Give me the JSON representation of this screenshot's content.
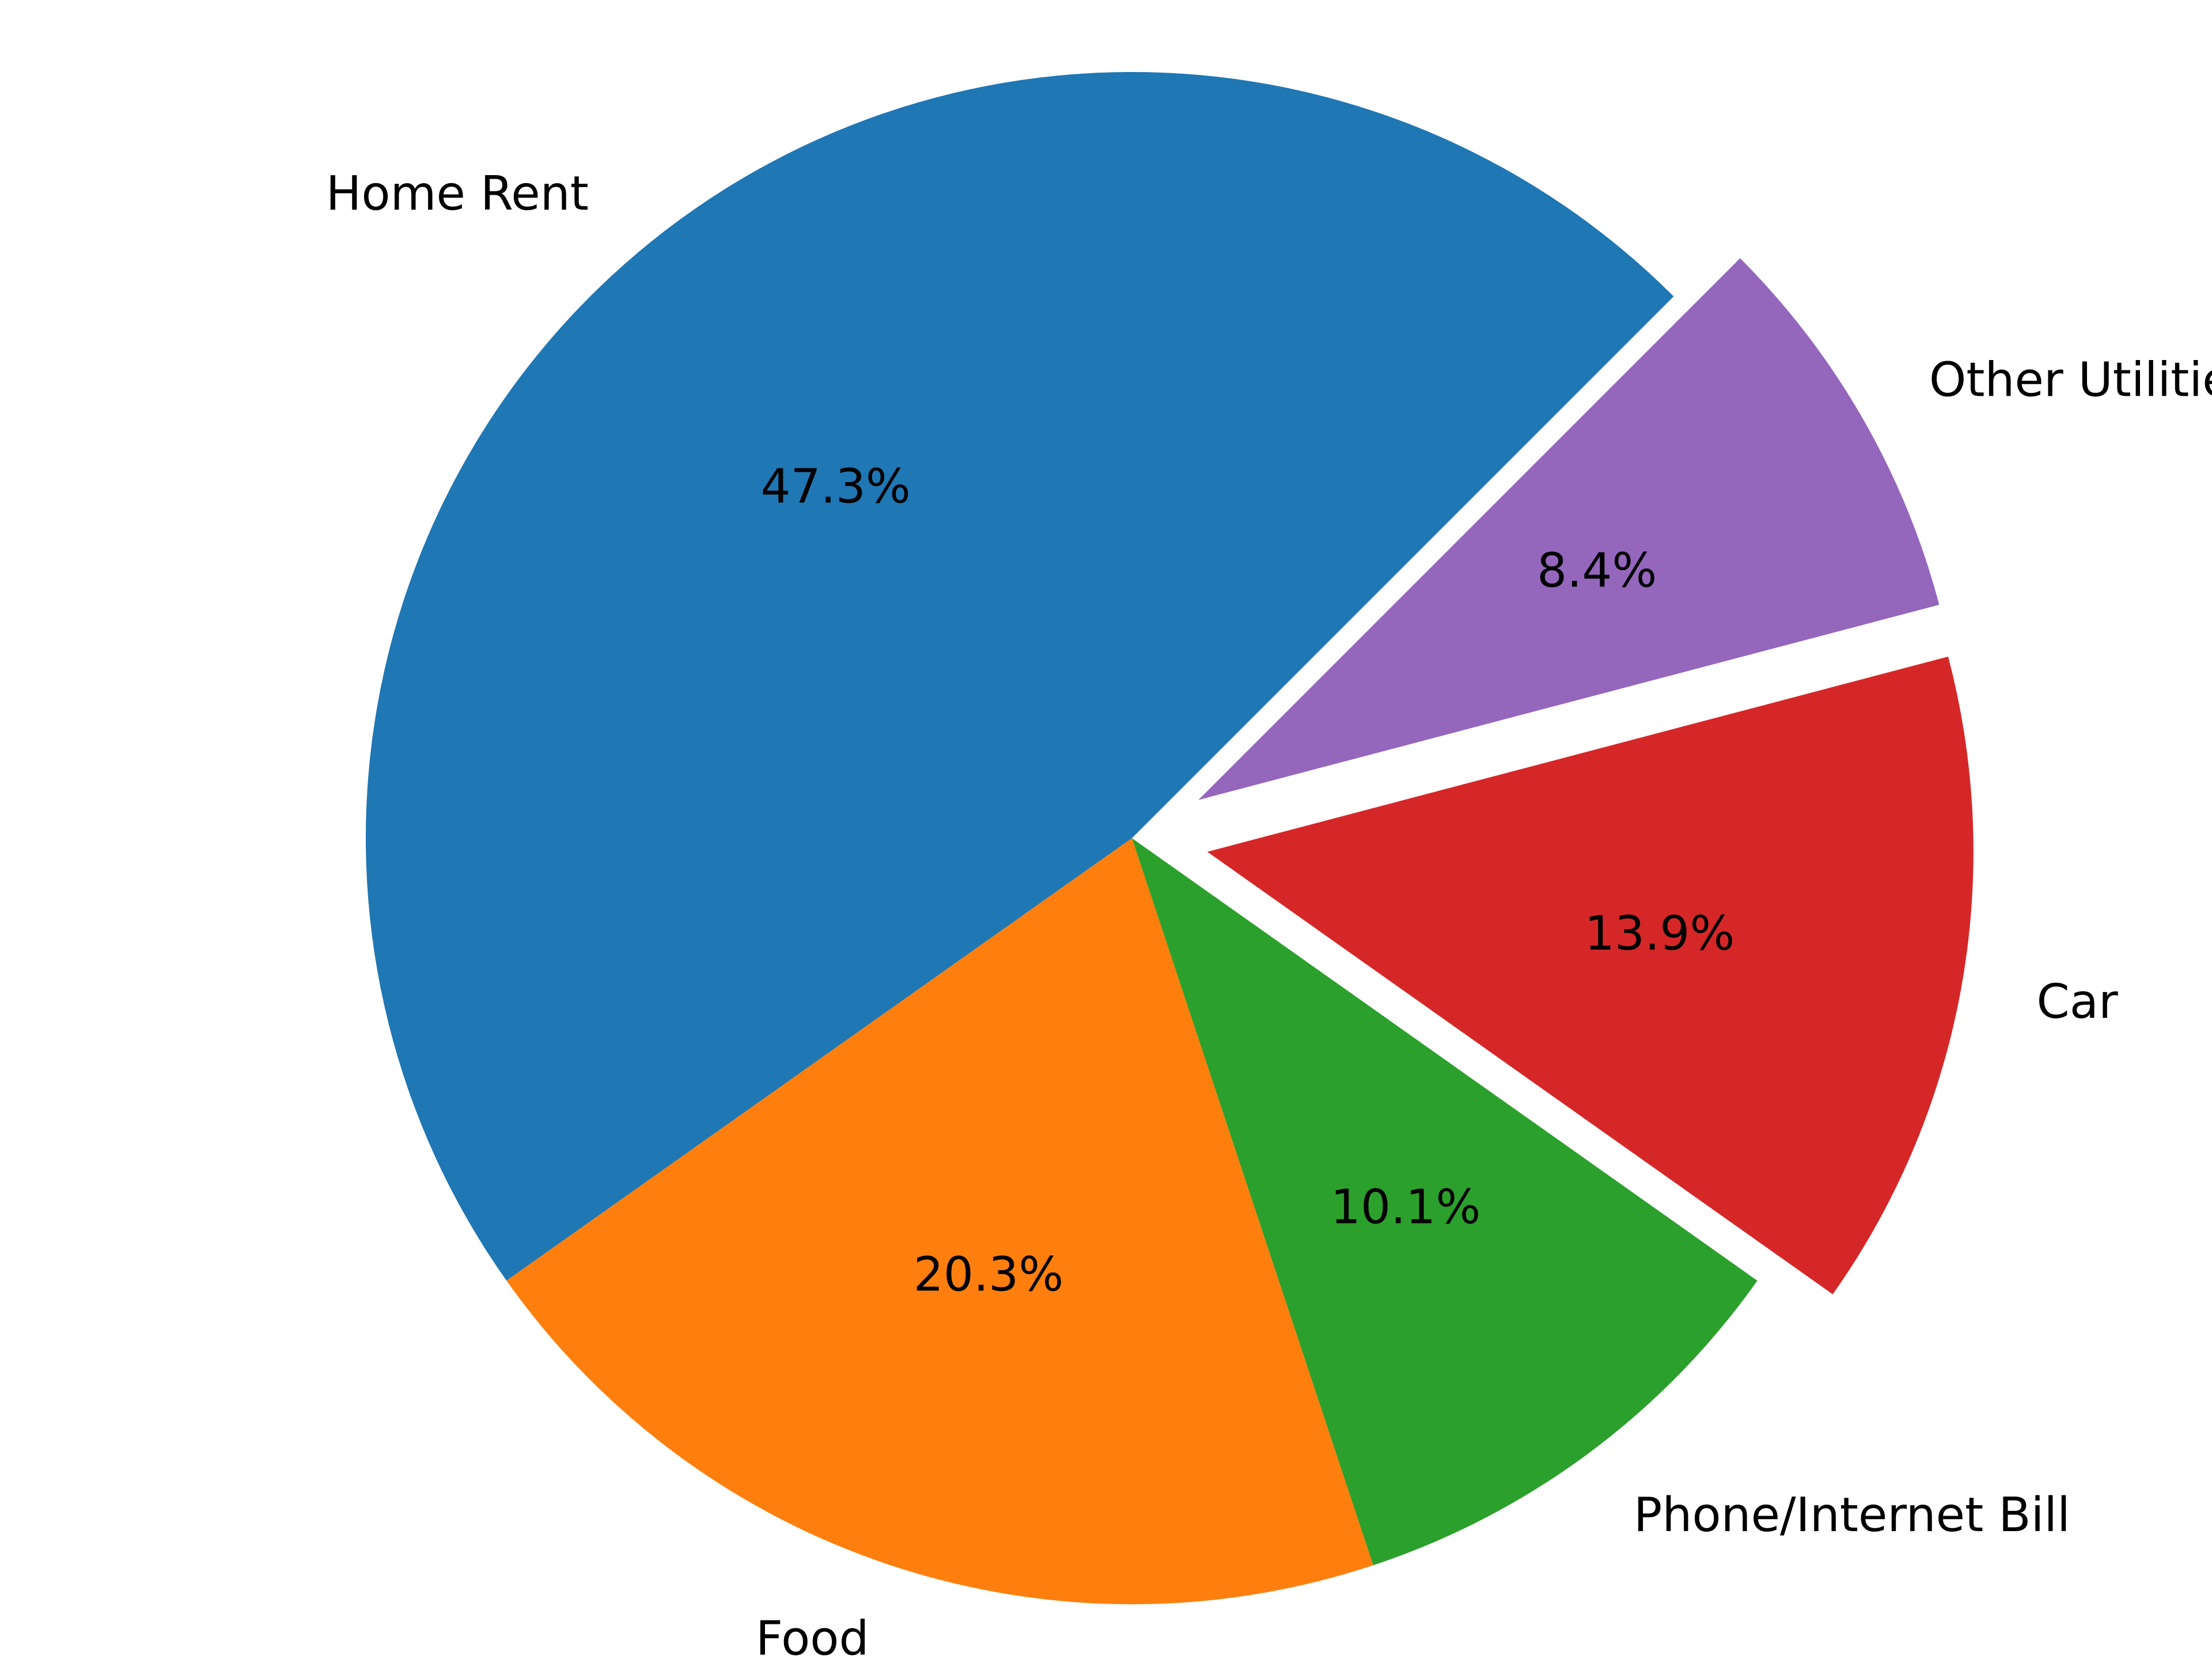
{
  "chart_data": {
    "type": "pie",
    "title": "",
    "categories": [
      "Home Rent",
      "Food",
      "Phone/Internet Bill",
      "Car",
      "Other Utilities"
    ],
    "values": [
      47.3,
      20.3,
      10.1,
      13.9,
      8.4
    ],
    "percent_labels": [
      "47.3%",
      "20.3%",
      "10.1%",
      "13.9%",
      "8.4%"
    ],
    "colors": [
      "#1f77b4",
      "#ff7f0e",
      "#2ca02c",
      "#d62728",
      "#9467bd"
    ],
    "exploded": [
      false,
      false,
      false,
      true,
      true
    ],
    "start_angle_deg": 45,
    "direction": "counterclockwise",
    "legend": "none"
  }
}
